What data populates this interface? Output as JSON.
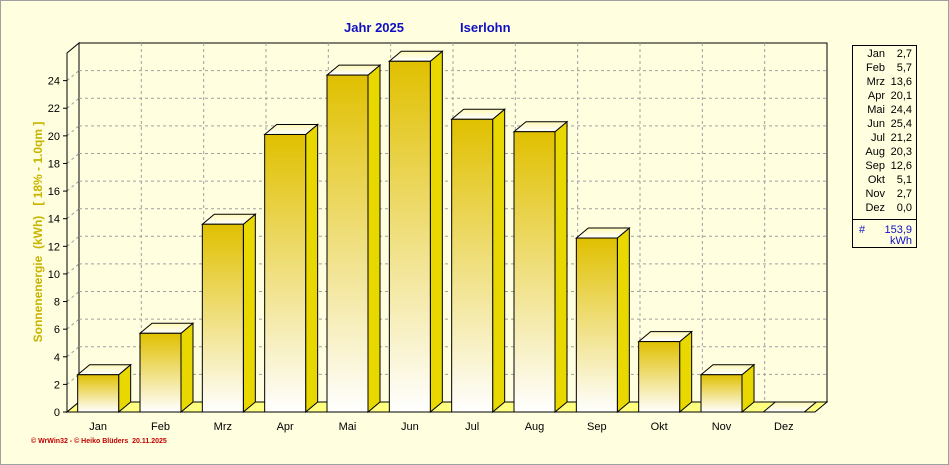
{
  "chart_data": {
    "type": "bar",
    "title": "Jahr  2025",
    "subtitle": "Iserlohn",
    "ylabel": "Sonnenenergie  (kWh)",
    "ylabel_note": "[ 18% - 1.0qm ]",
    "categories": [
      "Jan",
      "Feb",
      "Mrz",
      "Apr",
      "Mai",
      "Jun",
      "Jul",
      "Aug",
      "Sep",
      "Okt",
      "Nov",
      "Dez"
    ],
    "values": [
      2.7,
      5.7,
      13.6,
      20.1,
      24.4,
      25.4,
      21.2,
      20.3,
      12.6,
      5.1,
      2.7,
      0.0
    ],
    "ylim": [
      0,
      26
    ],
    "yticks": [
      0,
      2,
      4,
      6,
      8,
      10,
      12,
      14,
      16,
      18,
      20,
      22,
      24
    ],
    "grid": true,
    "bar_style": "3d-gradient"
  },
  "legend": {
    "rows": [
      {
        "month": "Jan",
        "value": "2,7"
      },
      {
        "month": "Feb",
        "value": "5,7"
      },
      {
        "month": "Mrz",
        "value": "13,6"
      },
      {
        "month": "Apr",
        "value": "20,1"
      },
      {
        "month": "Mai",
        "value": "24,4"
      },
      {
        "month": "Jun",
        "value": "25,4"
      },
      {
        "month": "Jul",
        "value": "21,2"
      },
      {
        "month": "Aug",
        "value": "20,3"
      },
      {
        "month": "Sep",
        "value": "12,6"
      },
      {
        "month": "Okt",
        "value": "5,1"
      },
      {
        "month": "Nov",
        "value": "2,7"
      },
      {
        "month": "Dez",
        "value": "0,0"
      }
    ],
    "total_symbol": "#",
    "total_value": "153,9",
    "total_unit": "kWh"
  },
  "footer": "© WrWin32 - © Heiko Blüders  20.11.2025",
  "colors": {
    "background": "#ffffe0",
    "title": "#1010c0",
    "ylabel": "#c8b400",
    "bar_top": "#e0c000",
    "bar_bottom": "#ffffff",
    "bar_side": "#e8d800",
    "bar_cap": "#fff8a8",
    "floor": "#ffff80",
    "grid": "#a0a0a0",
    "footer": "#c00000"
  }
}
